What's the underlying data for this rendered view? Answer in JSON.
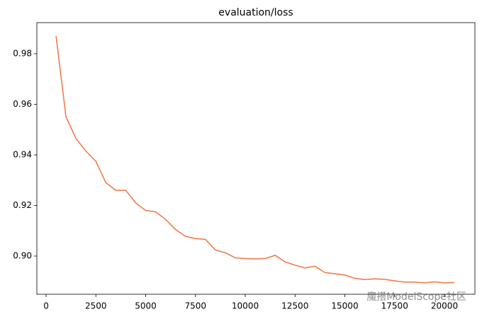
{
  "chart_data": {
    "type": "line",
    "title": "evaluation/loss",
    "x": [
      500,
      1000,
      1500,
      2000,
      2500,
      3000,
      3500,
      4000,
      4500,
      5000,
      5500,
      6000,
      6500,
      7000,
      7500,
      8000,
      8500,
      9000,
      9500,
      10000,
      10500,
      11000,
      11500,
      12000,
      12500,
      13000,
      13500,
      14000,
      14500,
      15000,
      15500,
      16000,
      16500,
      17000,
      17500,
      18000,
      18500,
      19000,
      19500,
      20000,
      20500
    ],
    "series": [
      {
        "name": "evaluation/loss",
        "color": "#f07c4f",
        "values": [
          0.987,
          0.955,
          0.9465,
          0.9415,
          0.9375,
          0.929,
          0.926,
          0.926,
          0.921,
          0.918,
          0.9175,
          0.9145,
          0.9105,
          0.9078,
          0.9069,
          0.9066,
          0.9024,
          0.9013,
          0.8993,
          0.899,
          0.8989,
          0.899,
          0.9003,
          0.8977,
          0.8964,
          0.8953,
          0.896,
          0.8935,
          0.893,
          0.8925,
          0.8912,
          0.8907,
          0.891,
          0.8908,
          0.8902,
          0.8897,
          0.8897,
          0.8894,
          0.8898,
          0.8894,
          0.8895
        ]
      }
    ],
    "xlim": [
      -463,
      21530
    ],
    "ylim": [
      0.8849,
      0.9923
    ],
    "xticks": [
      0,
      2500,
      5000,
      7500,
      10000,
      12500,
      15000,
      17500,
      20000
    ],
    "yticks": [
      {
        "value": 0.9,
        "label": "0.90"
      },
      {
        "value": 0.92,
        "label": "0.92"
      },
      {
        "value": 0.94,
        "label": "0.94"
      },
      {
        "value": 0.96,
        "label": "0.96"
      },
      {
        "value": 0.98,
        "label": "0.98"
      }
    ],
    "watermark": "魔搭ModelScope社区"
  }
}
